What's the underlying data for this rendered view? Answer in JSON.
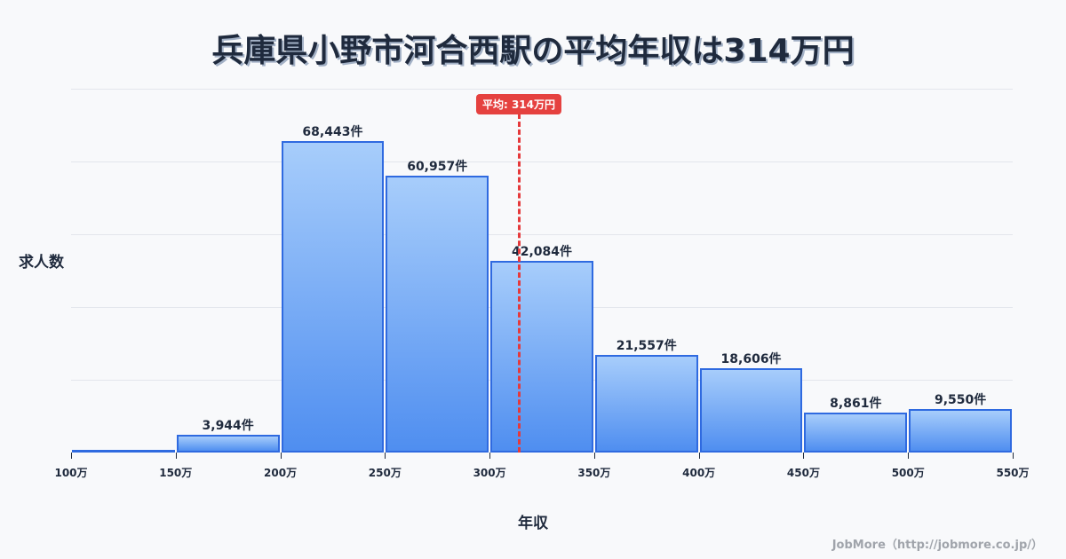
{
  "title": "兵庫県小野市河合西駅の平均年収は314万円",
  "axes": {
    "ylabel": "求人数",
    "xlabel": "年収"
  },
  "average": {
    "label": "平均: 314万円",
    "value": 314
  },
  "credit": "JobMore（http://jobmore.co.jp/）",
  "colors": {
    "bar_border": "#2f6ae0",
    "bar_top": "#a7cdfb",
    "bar_bottom": "#4f8ef0",
    "avg_line": "#e5393b",
    "text": "#1f2a3d"
  },
  "chart_data": {
    "type": "bar",
    "title": "兵庫県小野市河合西駅の平均年収は314万円",
    "xlabel": "年収",
    "ylabel": "求人数",
    "categories": [
      "100-150万",
      "150-200万",
      "200-250万",
      "250-300万",
      "300-350万",
      "350-400万",
      "400-450万",
      "450-500万",
      "500-550万"
    ],
    "values": [
      0,
      3944,
      68443,
      60957,
      42084,
      21557,
      18606,
      8861,
      9550
    ],
    "value_labels": [
      "",
      "3,944件",
      "68,443件",
      "60,957件",
      "42,084件",
      "21,557件",
      "18,606件",
      "8,861件",
      "9,550件"
    ],
    "x_ticks": [
      "100万",
      "150万",
      "200万",
      "250万",
      "300万",
      "350万",
      "400万",
      "450万",
      "500万",
      "550万"
    ],
    "ylim": [
      0,
      80000
    ],
    "grid": true,
    "annotations": [
      {
        "type": "vline",
        "x": 314,
        "label": "平均: 314万円"
      }
    ]
  }
}
